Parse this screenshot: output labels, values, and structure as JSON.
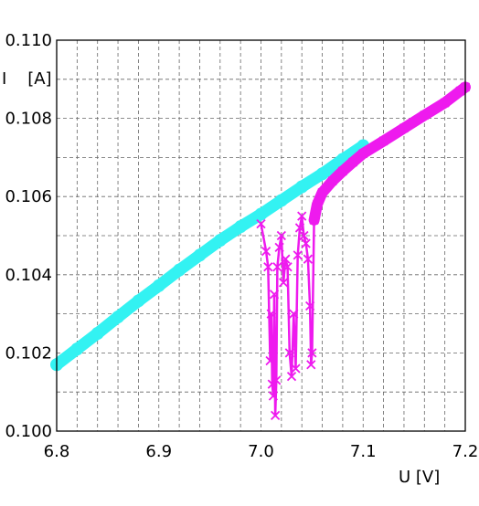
{
  "chart_data": {
    "type": "scatter",
    "title": "",
    "xlabel": "U [V]",
    "ylabel": "I    [A]",
    "xlim": [
      6.8,
      7.2
    ],
    "ylim": [
      0.1,
      0.11
    ],
    "x_ticks": [
      "6.8",
      "6.9",
      "7.0",
      "7.1",
      "7.2"
    ],
    "y_ticks": [
      "0.100",
      "0.102",
      "0.104",
      "0.106",
      "0.108",
      "0.110"
    ],
    "grid": "dashed, minor x step 0.02, minor y step 0.001",
    "colors": {
      "series_cyan": "#33f2f2",
      "series_magenta": "#ee1aee",
      "grid": "#666666"
    },
    "series": [
      {
        "marker": "circle",
        "color": "#33f2f2",
        "points": [
          [
            6.8,
            0.1017
          ],
          [
            6.82,
            0.1021
          ],
          [
            6.84,
            0.1025
          ],
          [
            6.86,
            0.10292
          ],
          [
            6.88,
            0.10333
          ],
          [
            6.9,
            0.10372
          ],
          [
            6.92,
            0.10412
          ],
          [
            6.94,
            0.1045
          ],
          [
            6.96,
            0.10488
          ],
          [
            6.98,
            0.10523
          ],
          [
            7.0,
            0.10555
          ],
          [
            7.02,
            0.1059
          ],
          [
            7.04,
            0.10625
          ],
          [
            7.06,
            0.10658
          ],
          [
            7.08,
            0.10695
          ],
          [
            7.1,
            0.1073
          ]
        ]
      },
      {
        "marker": "x",
        "color": "#ee1aee",
        "points": [
          [
            7.0,
            0.1053
          ],
          [
            7.005,
            0.1046
          ],
          [
            7.007,
            0.1042
          ],
          [
            7.009,
            0.1018
          ],
          [
            7.01,
            0.103
          ],
          [
            7.011,
            0.1012
          ],
          [
            7.012,
            0.1009
          ],
          [
            7.013,
            0.1035
          ],
          [
            7.014,
            0.1004
          ],
          [
            7.015,
            0.1013
          ],
          [
            7.016,
            0.1042
          ],
          [
            7.018,
            0.1047
          ],
          [
            7.02,
            0.105
          ],
          [
            7.022,
            0.1038
          ],
          [
            7.024,
            0.1044
          ],
          [
            7.026,
            0.1042
          ],
          [
            7.028,
            0.102
          ],
          [
            7.03,
            0.1014
          ],
          [
            7.032,
            0.103
          ],
          [
            7.034,
            0.1016
          ],
          [
            7.036,
            0.1045
          ],
          [
            7.038,
            0.1052
          ],
          [
            7.04,
            0.1055
          ],
          [
            7.042,
            0.105
          ],
          [
            7.044,
            0.1048
          ],
          [
            7.046,
            0.1044
          ],
          [
            7.048,
            0.1032
          ],
          [
            7.049,
            0.1017
          ],
          [
            7.05,
            0.102
          ],
          [
            7.052,
            0.1054
          ],
          [
            7.055,
            0.1058
          ],
          [
            7.06,
            0.1061
          ],
          [
            7.07,
            0.1064
          ],
          [
            7.08,
            0.10665
          ],
          [
            7.09,
            0.10688
          ],
          [
            7.1,
            0.1071
          ],
          [
            7.12,
            0.10742
          ],
          [
            7.14,
            0.10775
          ],
          [
            7.16,
            0.10808
          ],
          [
            7.18,
            0.1084
          ],
          [
            7.195,
            0.1087
          ],
          [
            7.2,
            0.1088
          ]
        ]
      }
    ]
  }
}
